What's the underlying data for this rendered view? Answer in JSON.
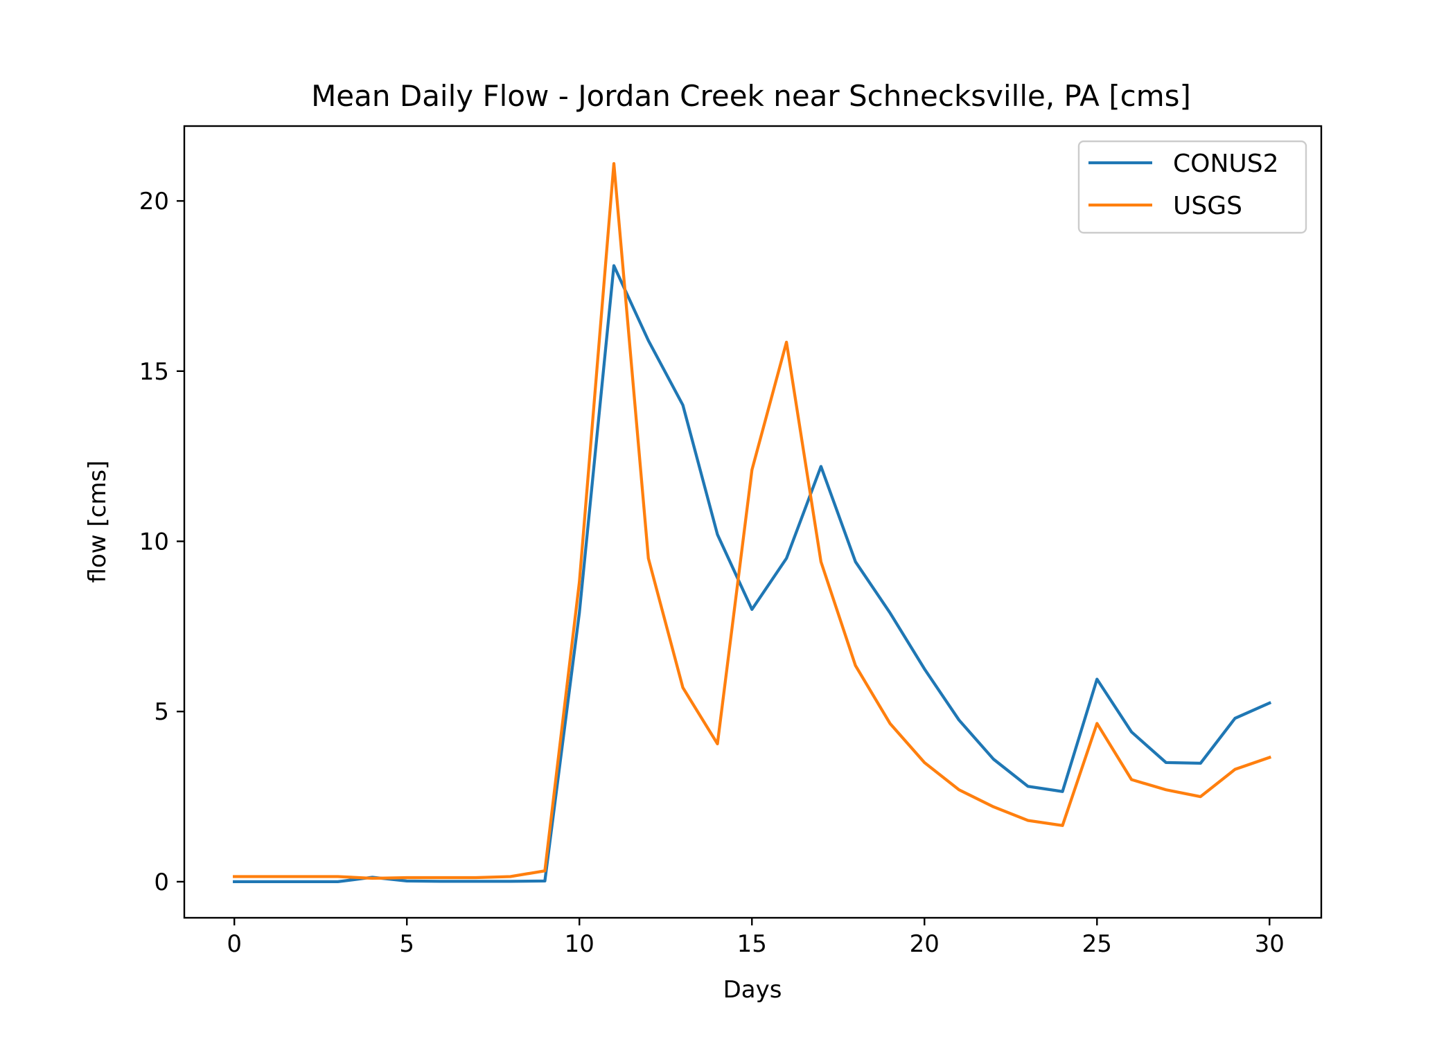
{
  "chart_data": {
    "type": "line",
    "title": "Mean Daily Flow - Jordan Creek near Schnecksville, PA [cms]",
    "xlabel": "Days",
    "ylabel": "flow [cms]",
    "xlim": [
      -1.45,
      31.5
    ],
    "ylim": [
      -1.06,
      22.2
    ],
    "xticks": [
      0,
      5,
      10,
      15,
      20,
      25,
      30
    ],
    "yticks": [
      0,
      5,
      10,
      15,
      20
    ],
    "grid": false,
    "legend_position": "top-right",
    "x": [
      0,
      1,
      2,
      3,
      4,
      5,
      6,
      7,
      8,
      9,
      10,
      11,
      12,
      13,
      14,
      15,
      16,
      17,
      18,
      19,
      20,
      21,
      22,
      23,
      24,
      25,
      26,
      27,
      28,
      29,
      30
    ],
    "series": [
      {
        "name": "CONUS2",
        "color": "#1f77b4",
        "values": [
          0.0,
          0.0,
          0.0,
          0.0,
          0.13,
          0.02,
          0.01,
          0.01,
          0.01,
          0.02,
          7.9,
          18.1,
          15.9,
          14.0,
          10.2,
          8.0,
          9.5,
          12.2,
          9.4,
          7.9,
          6.25,
          4.75,
          3.6,
          2.8,
          2.65,
          5.95,
          4.4,
          3.5,
          3.48,
          4.8,
          5.25
        ]
      },
      {
        "name": "USGS",
        "color": "#ff7f0e",
        "values": [
          0.15,
          0.15,
          0.15,
          0.15,
          0.1,
          0.12,
          0.12,
          0.12,
          0.15,
          0.32,
          8.8,
          21.1,
          9.5,
          5.7,
          4.05,
          12.1,
          15.85,
          9.4,
          6.35,
          4.65,
          3.5,
          2.7,
          2.2,
          1.8,
          1.65,
          4.65,
          3.0,
          2.7,
          2.5,
          3.3,
          3.65
        ]
      }
    ]
  }
}
